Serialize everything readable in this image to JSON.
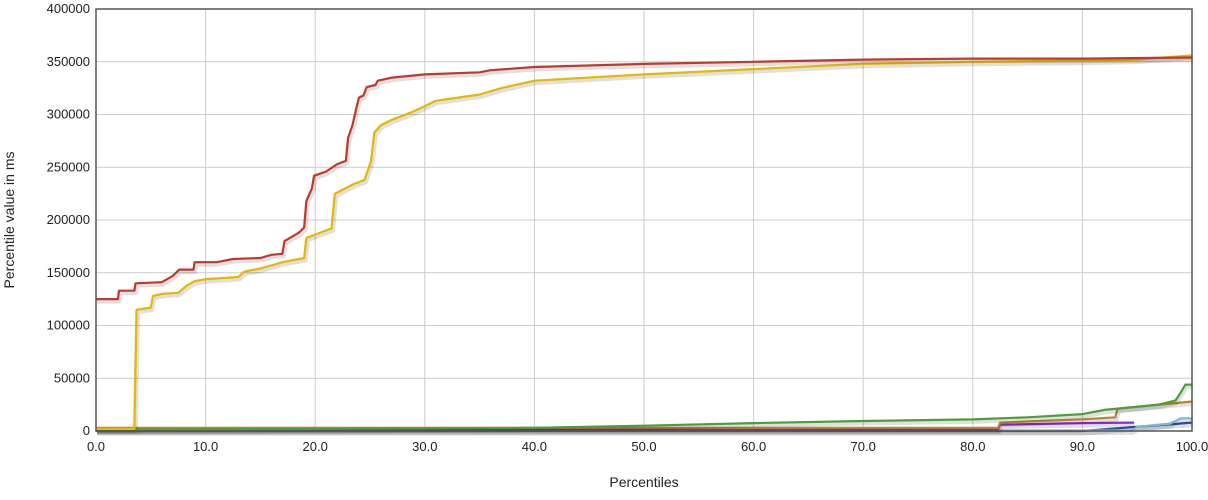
{
  "chart_data": {
    "type": "line",
    "title": "",
    "xlabel": "Percentiles",
    "ylabel": "Percentile value in ms",
    "xlim": [
      0,
      100
    ],
    "ylim": [
      0,
      400000
    ],
    "x_ticks": [
      0,
      10,
      20,
      30,
      40,
      50,
      60,
      70,
      80,
      90,
      100
    ],
    "x_tick_labels": [
      "0.0",
      "10.0",
      "20.0",
      "30.0",
      "40.0",
      "50.0",
      "60.0",
      "70.0",
      "80.0",
      "90.0",
      "100.0"
    ],
    "y_ticks": [
      0,
      50000,
      100000,
      150000,
      200000,
      250000,
      300000,
      350000,
      400000
    ],
    "y_tick_labels": [
      "0",
      "50000",
      "100000",
      "150000",
      "200000",
      "250000",
      "300000",
      "350000",
      "400000"
    ],
    "grid": true,
    "legend": "none",
    "series": [
      {
        "color": "#c0392b",
        "points": [
          [
            0,
            125000
          ],
          [
            2,
            125000
          ],
          [
            2.1,
            133000
          ],
          [
            3.5,
            133000
          ],
          [
            3.6,
            140000
          ],
          [
            6,
            141000
          ],
          [
            7,
            147000
          ],
          [
            7.6,
            153000
          ],
          [
            8.9,
            153000
          ],
          [
            9,
            160000
          ],
          [
            11,
            160000
          ],
          [
            12.5,
            163000
          ],
          [
            15,
            164000
          ],
          [
            16,
            167000
          ],
          [
            17,
            168000
          ],
          [
            17.2,
            180000
          ],
          [
            18.5,
            188000
          ],
          [
            19,
            193000
          ],
          [
            19.2,
            218000
          ],
          [
            19.7,
            230000
          ],
          [
            19.9,
            242000
          ],
          [
            21,
            246000
          ],
          [
            22,
            253000
          ],
          [
            22.8,
            256000
          ],
          [
            23,
            278000
          ],
          [
            23.4,
            290000
          ],
          [
            23.8,
            308000
          ],
          [
            24,
            316000
          ],
          [
            24.4,
            318000
          ],
          [
            24.7,
            326000
          ],
          [
            25.5,
            328000
          ],
          [
            25.7,
            332000
          ],
          [
            27,
            335000
          ],
          [
            30,
            338000
          ],
          [
            35,
            340000
          ],
          [
            36,
            342000
          ],
          [
            40,
            345000
          ],
          [
            50,
            348000
          ],
          [
            60,
            350000
          ],
          [
            70,
            352000
          ],
          [
            80,
            353000
          ],
          [
            90,
            353000
          ],
          [
            100,
            354000
          ]
        ]
      },
      {
        "color": "#e6b800",
        "points": [
          [
            0,
            2000
          ],
          [
            3.5,
            2000
          ],
          [
            3.7,
            115000
          ],
          [
            5,
            117000
          ],
          [
            5.2,
            128000
          ],
          [
            6,
            130000
          ],
          [
            7.5,
            131000
          ],
          [
            8.3,
            138000
          ],
          [
            9,
            142000
          ],
          [
            10,
            144000
          ],
          [
            13,
            146000
          ],
          [
            13.5,
            151000
          ],
          [
            15,
            154000
          ],
          [
            16,
            157000
          ],
          [
            17,
            160000
          ],
          [
            19,
            164000
          ],
          [
            19.2,
            183000
          ],
          [
            21.5,
            192000
          ],
          [
            21.8,
            225000
          ],
          [
            23.5,
            234000
          ],
          [
            24.5,
            238000
          ],
          [
            25.1,
            256000
          ],
          [
            25.4,
            283000
          ],
          [
            26,
            290000
          ],
          [
            27,
            295000
          ],
          [
            29,
            303000
          ],
          [
            30,
            308000
          ],
          [
            31,
            313000
          ],
          [
            35,
            319000
          ],
          [
            37,
            325000
          ],
          [
            40,
            332000
          ],
          [
            50,
            338000
          ],
          [
            60,
            343000
          ],
          [
            70,
            348000
          ],
          [
            80,
            350000
          ],
          [
            90,
            351000
          ],
          [
            95,
            352000
          ],
          [
            100,
            356000
          ]
        ]
      },
      {
        "color": "#4a9f3a",
        "points": [
          [
            0,
            1000
          ],
          [
            40,
            3000
          ],
          [
            50,
            5000
          ],
          [
            60,
            7500
          ],
          [
            70,
            9500
          ],
          [
            80,
            11000
          ],
          [
            85,
            13000
          ],
          [
            90,
            16000
          ],
          [
            92,
            20000
          ],
          [
            95,
            23000
          ],
          [
            97,
            25000
          ],
          [
            98.5,
            29000
          ],
          [
            99,
            37000
          ],
          [
            99.4,
            44000
          ],
          [
            100,
            44000
          ]
        ]
      },
      {
        "color": "#b8862c",
        "points": [
          [
            0,
            3000
          ],
          [
            80,
            3000
          ],
          [
            82.3,
            3000
          ],
          [
            82.5,
            8000
          ],
          [
            85,
            9000
          ],
          [
            90,
            11000
          ],
          [
            93,
            13000
          ],
          [
            93.2,
            21000
          ],
          [
            96,
            24000
          ],
          [
            100,
            28000
          ]
        ]
      },
      {
        "color": "#8a2be2",
        "points": [
          [
            0,
            1500
          ],
          [
            82.3,
            1500
          ],
          [
            82.5,
            6000
          ],
          [
            90,
            7500
          ],
          [
            94.6,
            8000
          ],
          [
            94.7,
            8000
          ]
        ]
      },
      {
        "color": "#7fb3e0",
        "points": [
          [
            0,
            200
          ],
          [
            94.5,
            500
          ],
          [
            95,
            4000
          ],
          [
            98,
            7000
          ],
          [
            99,
            12000
          ],
          [
            100,
            12000
          ]
        ]
      },
      {
        "color": "#2b4f9e",
        "points": [
          [
            0,
            -2500
          ],
          [
            90,
            -2000
          ],
          [
            100,
            8000
          ]
        ]
      }
    ]
  }
}
